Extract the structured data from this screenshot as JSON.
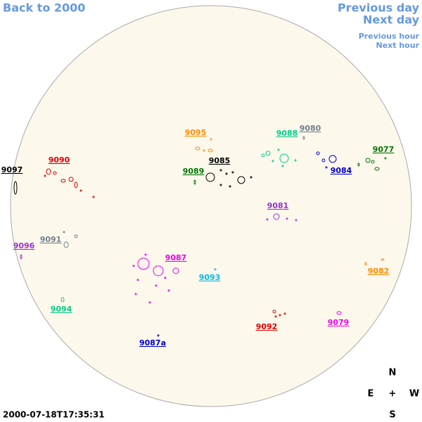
{
  "navigation": {
    "back": "Back to 2000",
    "previous_day": "Previous day",
    "next_day": "Next day",
    "previous_hour": "Previous hour",
    "next_hour": "Next hour"
  },
  "regions": [
    {
      "label": "9097",
      "color": "#000000"
    },
    {
      "label": "9090",
      "color": "#dd0000"
    },
    {
      "label": "9095",
      "color": "#ff8c00"
    },
    {
      "label": "9088",
      "color": "#00cc88"
    },
    {
      "label": "9080",
      "color": "#708090"
    },
    {
      "label": "9077",
      "color": "#007700"
    },
    {
      "label": "9089",
      "color": "#007700"
    },
    {
      "label": "9085",
      "color": "#000000"
    },
    {
      "label": "9084",
      "color": "#0000cc"
    },
    {
      "label": "9081",
      "color": "#9933cc"
    },
    {
      "label": "9091",
      "color": "#708090"
    },
    {
      "label": "9096",
      "color": "#9933cc"
    },
    {
      "label": "9087",
      "color": "#ee00ee"
    },
    {
      "label": "9093",
      "color": "#00bbee"
    },
    {
      "label": "9082",
      "color": "#ff8c00"
    },
    {
      "label": "9094",
      "color": "#00cc88"
    },
    {
      "label": "9092",
      "color": "#dd0000"
    },
    {
      "label": "9079",
      "color": "#ee00ee"
    },
    {
      "label": "9087a",
      "color": "#0000cc"
    }
  ],
  "compass": {
    "north": "N",
    "east": "E",
    "center": "+",
    "west": "W",
    "south": "S"
  },
  "timestamp": "2000-07-18T17:35:31"
}
